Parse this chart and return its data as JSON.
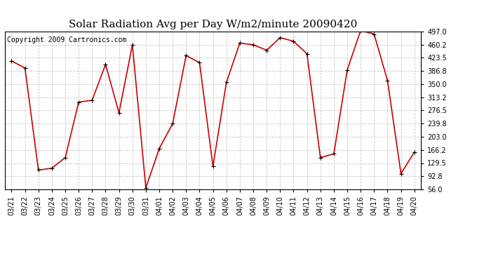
{
  "title": "Solar Radiation Avg per Day W/m2/minute 20090420",
  "copyright": "Copyright 2009 Cartronics.com",
  "dates": [
    "03/21",
    "03/22",
    "03/23",
    "03/24",
    "03/25",
    "03/26",
    "03/27",
    "03/28",
    "03/29",
    "03/30",
    "03/31",
    "04/01",
    "04/02",
    "04/03",
    "04/04",
    "04/05",
    "04/06",
    "04/07",
    "04/08",
    "04/09",
    "04/10",
    "04/11",
    "04/12",
    "04/13",
    "04/14",
    "04/15",
    "04/16",
    "04/17",
    "04/18",
    "04/19",
    "04/20"
  ],
  "values": [
    415,
    395,
    110,
    115,
    145,
    300,
    305,
    405,
    270,
    460,
    60,
    170,
    240,
    430,
    410,
    120,
    355,
    465,
    460,
    445,
    480,
    470,
    435,
    145,
    155,
    390,
    500,
    490,
    360,
    100,
    160
  ],
  "line_color": "#cc0000",
  "marker_color": "#cc0000",
  "bg_color": "#ffffff",
  "grid_color": "#c8c8c8",
  "yticks": [
    56.0,
    92.8,
    129.5,
    166.2,
    203.0,
    239.8,
    276.5,
    313.2,
    350.0,
    386.8,
    423.5,
    460.2,
    497.0
  ],
  "ymin": 56.0,
  "ymax": 497.0,
  "title_fontsize": 11,
  "copyright_fontsize": 7,
  "axis_fontsize": 7
}
